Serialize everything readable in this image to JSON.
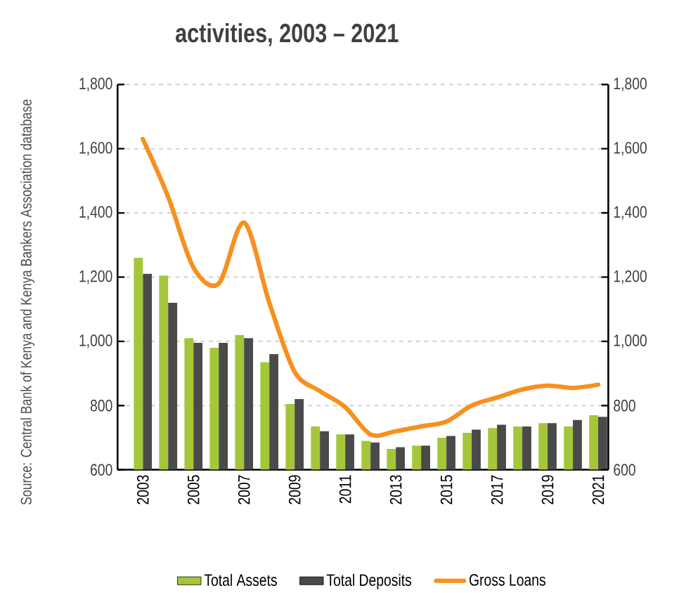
{
  "chart_data": {
    "type": "bar",
    "title": "activities, 2003 – 2021",
    "categories": [
      "2003",
      null,
      "2005",
      null,
      "2007",
      null,
      "2009",
      null,
      "2011",
      null,
      "2013",
      null,
      "2015",
      null,
      "2017",
      null,
      "2019",
      null,
      "2021"
    ],
    "series": [
      {
        "name": "Total Assets",
        "color": "#a4c639",
        "values": [
          1260,
          1205,
          1010,
          980,
          1020,
          935,
          805,
          735,
          710,
          690,
          665,
          675,
          700,
          715,
          730,
          735,
          745,
          735,
          770
        ]
      },
      {
        "name": "Total Deposits",
        "color": "#4a4a4a",
        "values": [
          1210,
          1120,
          995,
          995,
          1010,
          960,
          820,
          720,
          710,
          685,
          670,
          675,
          705,
          725,
          740,
          735,
          745,
          755,
          765
        ]
      },
      {
        "name": "Gross Loans",
        "type": "line",
        "color": "#f7901e",
        "values": [
          1630,
          1450,
          1230,
          1180,
          1370,
          1120,
          905,
          845,
          795,
          710,
          720,
          735,
          750,
          800,
          825,
          850,
          862,
          855,
          865
        ]
      }
    ],
    "ylim": [
      600,
      1800
    ],
    "yticks": [
      600,
      800,
      {
        "value": 1000,
        "label": "1,000"
      },
      {
        "value": 1200,
        "label": "1,200"
      },
      {
        "value": 1400,
        "label": "1,400"
      },
      {
        "value": 1600,
        "label": "1,600"
      },
      {
        "value": 1800,
        "label": "1,800"
      }
    ],
    "y2lim": [
      600,
      1800
    ],
    "y2ticks": [
      600,
      800,
      {
        "value": 1000,
        "label": "1,000"
      },
      {
        "value": 1200,
        "label": "1,200"
      },
      {
        "value": 1400,
        "label": "1,400"
      },
      {
        "value": 1600,
        "label": "1,600"
      },
      {
        "value": 1800,
        "label": "1,800"
      }
    ],
    "grid": "y",
    "legend": "bottom",
    "annotations": [
      "Source: Central Bank of Kenya and Kenya Bankers Association database"
    ]
  }
}
